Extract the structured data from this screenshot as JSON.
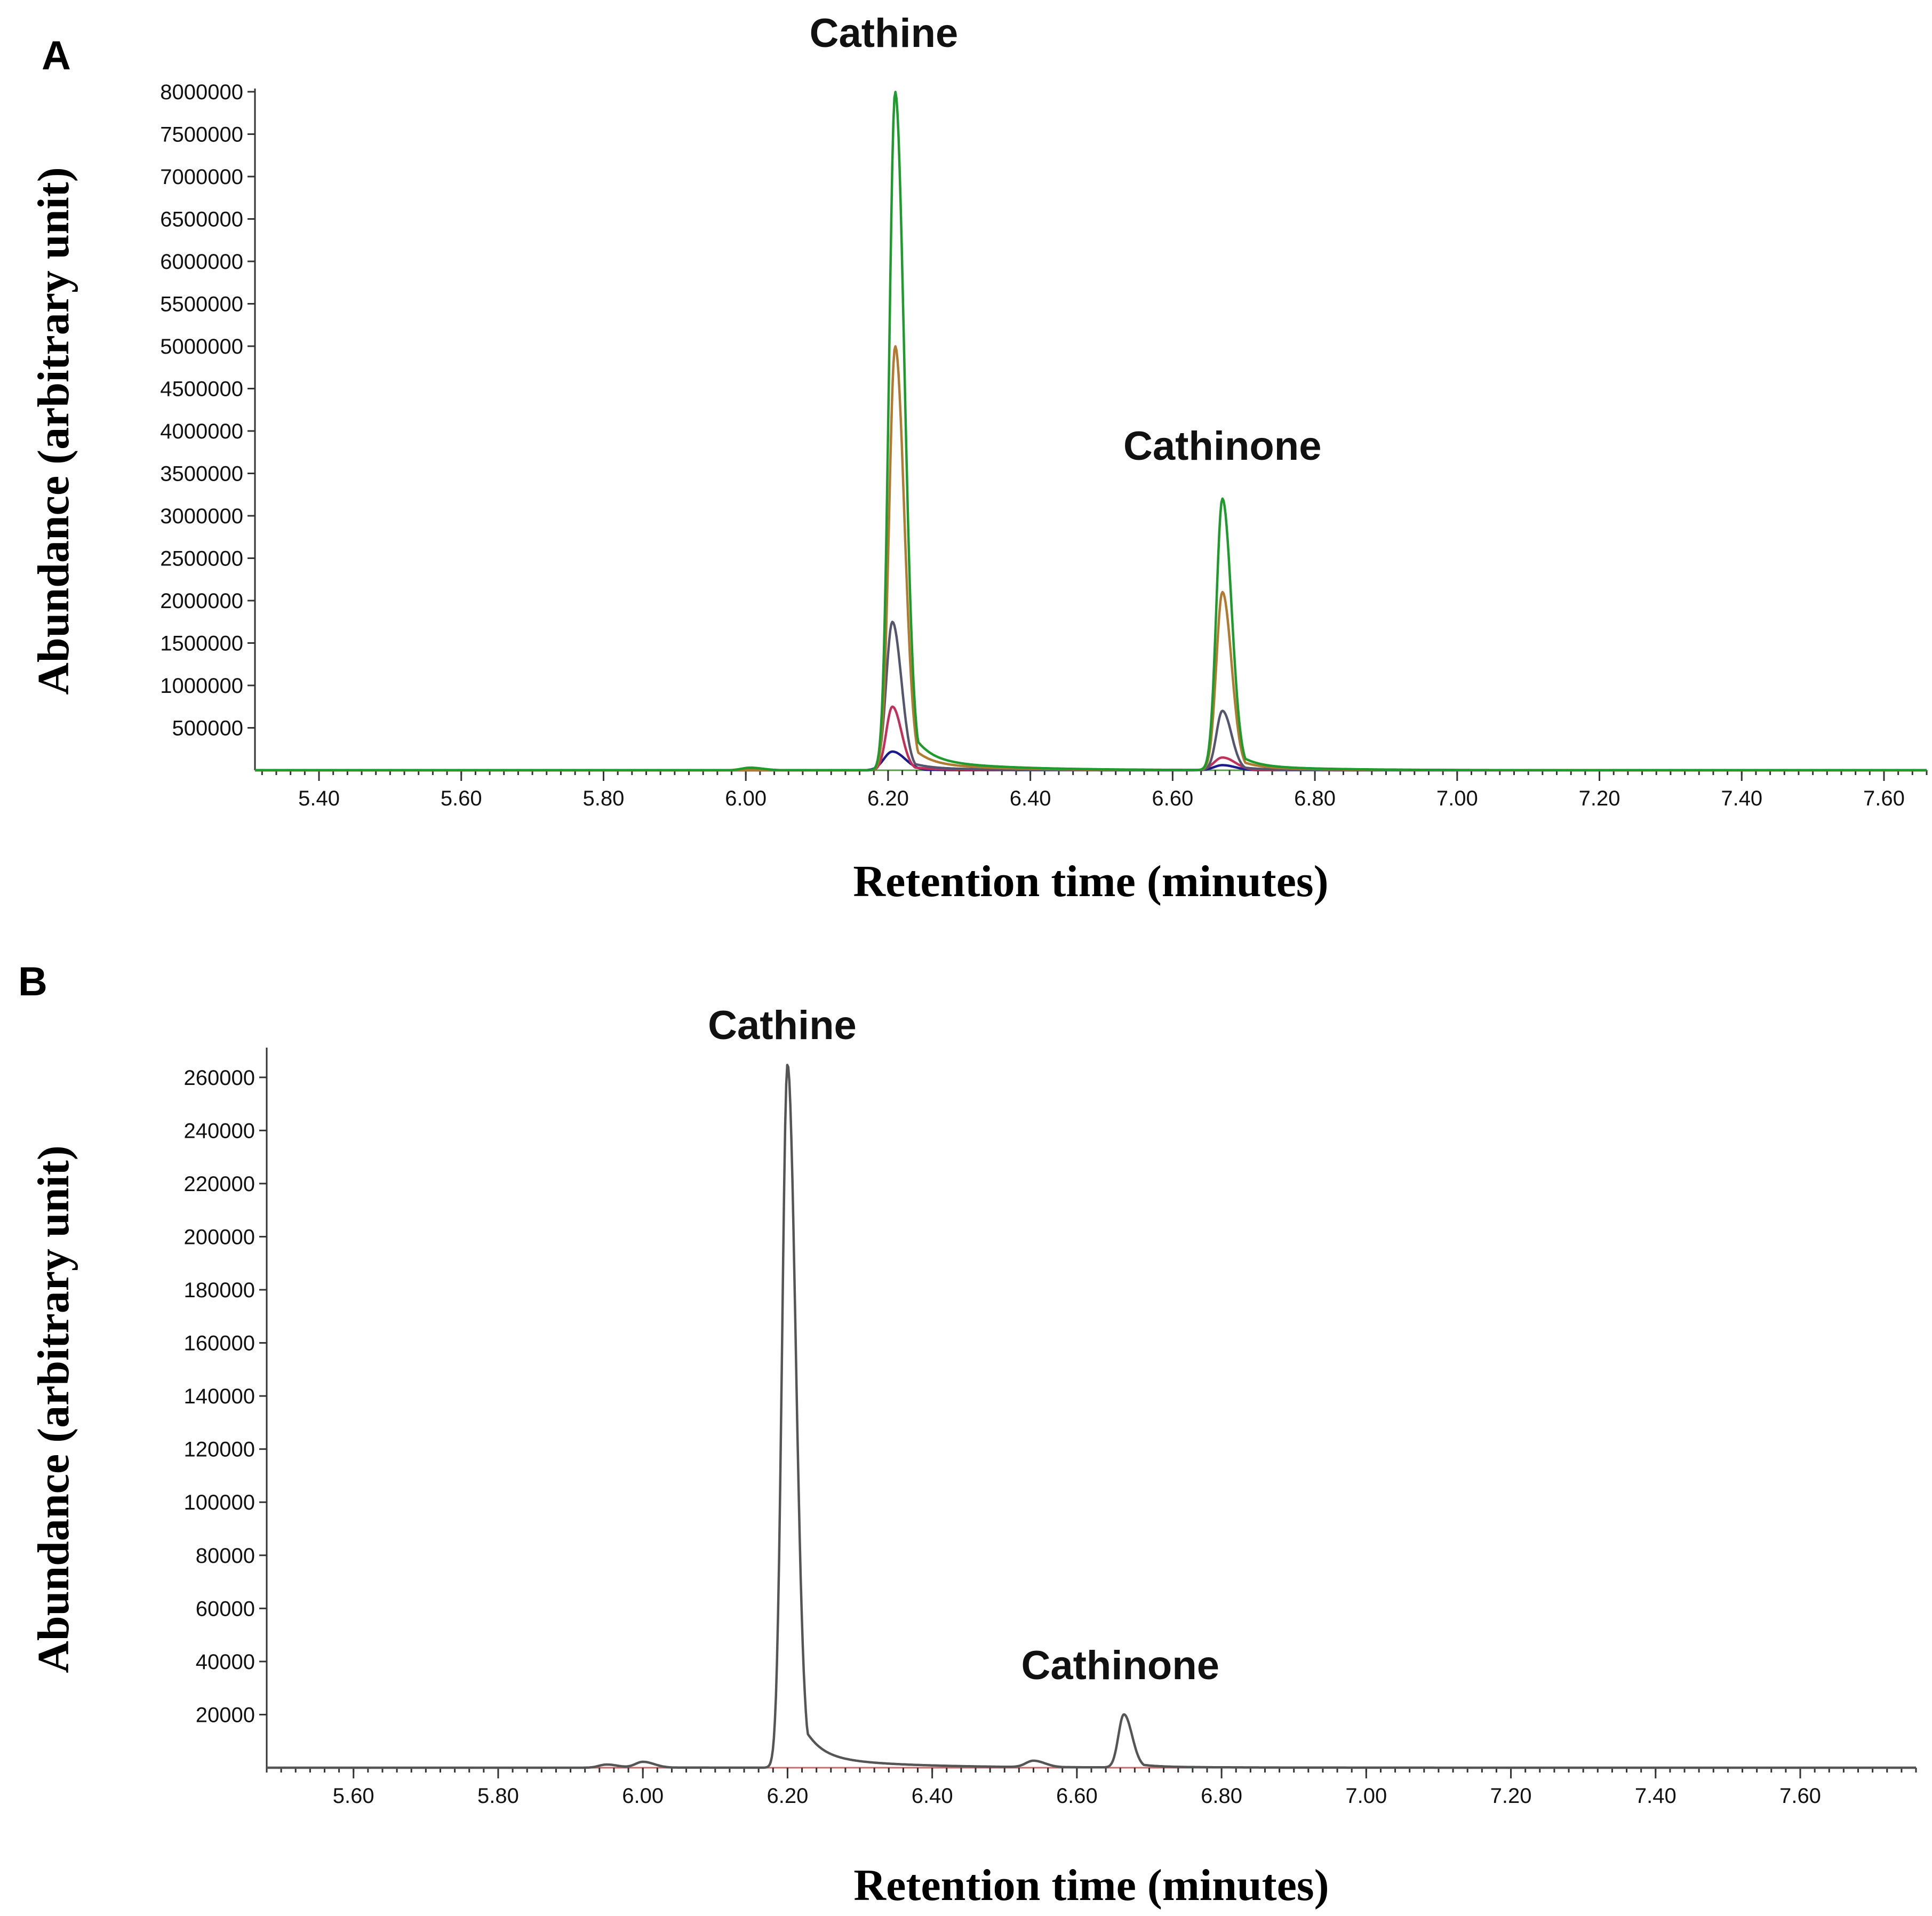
{
  "chart_data": [
    {
      "panel": "A",
      "type": "line",
      "xlabel": "Retention time (minutes)",
      "ylabel": "Abundance (arbitrary unit)",
      "xlim": [
        5.31,
        7.66
      ],
      "ylim": [
        0,
        8000000
      ],
      "xticks": [
        "5.40",
        "5.60",
        "5.80",
        "6.00",
        "6.20",
        "6.40",
        "6.60",
        "6.80",
        "7.00",
        "7.20",
        "7.40",
        "7.60"
      ],
      "yticks": [
        "500000",
        "1000000",
        "1500000",
        "2000000",
        "2500000",
        "3000000",
        "3500000",
        "4000000",
        "4500000",
        "5000000",
        "5500000",
        "6000000",
        "6500000",
        "7000000",
        "7500000",
        "8000000"
      ],
      "annotations": [
        {
          "text": "Cathine",
          "x": 6.2
        },
        {
          "text": "Cathinone",
          "x": 6.67
        }
      ],
      "series": [
        {
          "color": "#1f9a2c",
          "peaks": [
            [
              6.006,
              30000
            ],
            [
              6.21,
              8000000
            ],
            [
              6.67,
              3200000
            ]
          ]
        },
        {
          "color": "#b07a30",
          "peaks": [
            [
              6.21,
              5000000
            ],
            [
              6.67,
              2100000
            ]
          ]
        },
        {
          "color": "#55556e",
          "peaks": [
            [
              6.206,
              1750000
            ],
            [
              6.67,
              700000
            ]
          ]
        },
        {
          "color": "#c0305a",
          "peaks": [
            [
              6.206,
              750000
            ],
            [
              6.67,
              150000
            ]
          ]
        },
        {
          "color": "#1a1a8e",
          "peaks": [
            [
              6.206,
              220000
            ],
            [
              6.67,
              60000
            ]
          ]
        }
      ],
      "colors": {
        "x_axis_baseline": "#5a9e4c"
      }
    },
    {
      "panel": "B",
      "type": "line",
      "xlabel": "Retention time (minutes)",
      "ylabel": "Abundance (arbitrary unit)",
      "xlim": [
        5.48,
        7.76
      ],
      "ylim": [
        0,
        270000
      ],
      "xticks": [
        "5.60",
        "5.80",
        "6.00",
        "6.20",
        "6.40",
        "6.60",
        "6.80",
        "7.00",
        "7.20",
        "7.40",
        "7.60"
      ],
      "yticks": [
        "20000",
        "40000",
        "60000",
        "80000",
        "100000",
        "120000",
        "140000",
        "160000",
        "180000",
        "200000",
        "220000",
        "240000",
        "260000"
      ],
      "annotations": [
        {
          "text": "Cathine",
          "x": 6.2
        },
        {
          "text": "Cathinone",
          "x": 6.66
        }
      ],
      "series": [
        {
          "color": "#555555",
          "peaks": [
            [
              5.95,
              1200
            ],
            [
              6.0,
              2200
            ],
            [
              6.2,
              265000
            ],
            [
              6.54,
              2400
            ],
            [
              6.665,
              20000
            ]
          ]
        }
      ],
      "colors": {
        "x_axis_baseline": "#c07070"
      }
    }
  ]
}
